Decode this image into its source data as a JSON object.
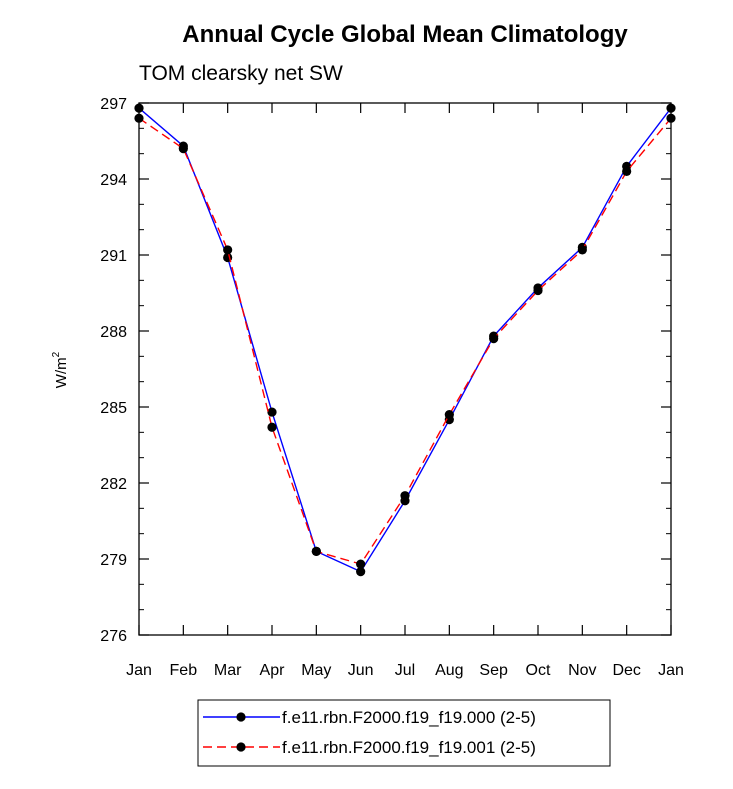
{
  "chart_data": {
    "type": "line",
    "title": "Annual Cycle Global Mean Climatology",
    "subtitle": "TOM clearsky net SW",
    "ylabel": "W/m",
    "ylabel_sup": "2",
    "ylim": [
      276,
      297
    ],
    "yticks": [
      276,
      279,
      282,
      285,
      288,
      291,
      294,
      297
    ],
    "categories": [
      "Jan",
      "Feb",
      "Mar",
      "Apr",
      "May",
      "Jun",
      "Jul",
      "Aug",
      "Sep",
      "Oct",
      "Nov",
      "Dec",
      "Jan"
    ],
    "series": [
      {
        "name": "f.e11.rbn.F2000.f19_f19.000 (2-5)",
        "color": "#0000ff",
        "dash": "solid",
        "values": [
          296.8,
          295.3,
          290.9,
          284.8,
          279.3,
          278.5,
          281.3,
          284.5,
          287.8,
          289.7,
          291.3,
          294.5,
          296.8
        ]
      },
      {
        "name": "f.e11.rbn.F2000.f19_f19.001 (2-5)",
        "color": "#ff0000",
        "dash": "dashed",
        "values": [
          296.4,
          295.2,
          291.2,
          284.2,
          279.3,
          278.8,
          281.5,
          284.7,
          287.7,
          289.6,
          291.2,
          294.3,
          296.4
        ]
      }
    ],
    "grid": false,
    "legend_position": "bottom"
  }
}
